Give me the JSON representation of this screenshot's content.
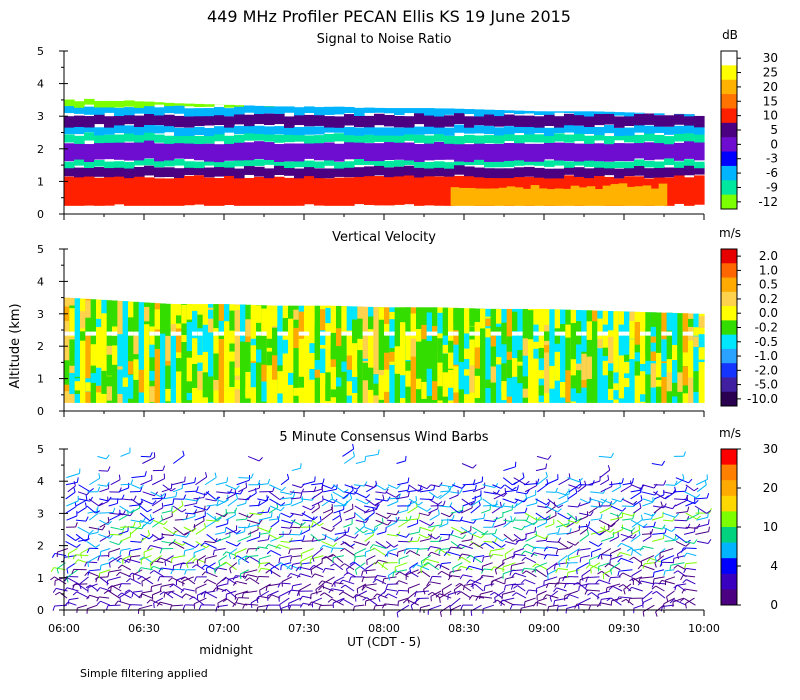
{
  "figure": {
    "title": "449 MHz Profiler PECAN Ellis KS 19 June 2015",
    "ylabel": "Altitude (km)",
    "xlabel": "UT  (CDT - 5)",
    "x_ticks": [
      "06:00",
      "06:30",
      "07:00",
      "07:30",
      "08:00",
      "08:30",
      "09:00",
      "09:30",
      "10:00"
    ],
    "x_annotation": "midnight",
    "y_ticks": [
      "0",
      "1",
      "2",
      "3",
      "4",
      "5"
    ],
    "footnote": "Simple filtering applied"
  },
  "chart_data": [
    {
      "type": "heatmap",
      "title": "Signal to Noise Ratio",
      "x_range": [
        "06:00",
        "10:00"
      ],
      "ylim": [
        0,
        5
      ],
      "colorbar_unit": "dB",
      "colorbar_ticks": [
        "30",
        "25",
        "20",
        "15",
        "10",
        "5",
        "0",
        "-3",
        "-6",
        "-9",
        "-12"
      ],
      "colorbar_colors": [
        "#ffffff",
        "#ffff00",
        "#ffb300",
        "#ff7300",
        "#ff2000",
        "#4b0082",
        "#6e0dd0",
        "#0000ff",
        "#00b4ff",
        "#00e8a0",
        "#7cff00"
      ],
      "layers": [
        {
          "label": "10",
          "color": "#ff2000",
          "from": 0.25,
          "to": 1.15
        },
        {
          "label": "5",
          "color": "#4b0082",
          "from": 1.15,
          "to": 1.45
        },
        {
          "label": "-9",
          "color": "#00e8a0",
          "from": 1.45,
          "to": 1.65
        },
        {
          "label": "0",
          "color": "#6e0dd0",
          "from": 1.65,
          "to": 2.2
        },
        {
          "label": "-9",
          "color": "#00e8a0",
          "from": 2.2,
          "to": 2.45
        },
        {
          "label": "-6",
          "color": "#00b4ff",
          "from": 2.45,
          "to": 2.7
        },
        {
          "label": "5",
          "color": "#4b0082",
          "from": 2.7,
          "to": 3.05
        },
        {
          "label": "-6",
          "color": "#00b4ff",
          "from": 3.05,
          "to": 3.3
        },
        {
          "label": "-12",
          "color": "#7cff00",
          "from": 3.3,
          "to": 3.5
        }
      ],
      "top_km": [
        3.55,
        3.5,
        3.4,
        3.35,
        3.3,
        3.3,
        3.25,
        3.25,
        3.2,
        3.15,
        3.15,
        3.1,
        3.05
      ],
      "hotspot": {
        "label": "20",
        "color": "#ffb300",
        "x_from": "08:25",
        "x_to": "09:45",
        "from": 0.25,
        "to": 0.85
      }
    },
    {
      "type": "heatmap",
      "title": "Vertical Velocity",
      "x_range": [
        "06:00",
        "10:00"
      ],
      "ylim": [
        0,
        5
      ],
      "colorbar_unit": "m/s",
      "colorbar_ticks": [
        "2.0",
        "1.0",
        "0.5",
        "0.2",
        "0.0",
        "-0.2",
        "-0.5",
        "-1.0",
        "-2.0",
        "-5.0",
        "-10.0"
      ],
      "colorbar_colors": [
        "#e60000",
        "#ff6600",
        "#ffaa00",
        "#ffd24d",
        "#ffff00",
        "#33dd00",
        "#00e6ff",
        "#2aa2ff",
        "#1535ff",
        "#4020a0",
        "#2a0050"
      ],
      "top_km": [
        3.5,
        3.4,
        3.3,
        3.3,
        3.25,
        3.25,
        3.2,
        3.2,
        3.15,
        3.15,
        3.1,
        3.05,
        3.0
      ],
      "gap_km": 2.4
    },
    {
      "type": "scatter",
      "title": "5 Minute Consensus Wind Barbs",
      "x_range": [
        "06:00",
        "10:00"
      ],
      "ylim": [
        0,
        5
      ],
      "colorbar_unit": "m/s",
      "colorbar_ticks": [
        "30",
        "20",
        "10",
        "4",
        "0"
      ],
      "colorbar_colors": [
        "#ff0000",
        "#ff7f00",
        "#ffaa00",
        "#ffd700",
        "#7cff00",
        "#00d27f",
        "#00b4ff",
        "#0000ff",
        "#3a00c0",
        "#4b0082"
      ]
    }
  ]
}
